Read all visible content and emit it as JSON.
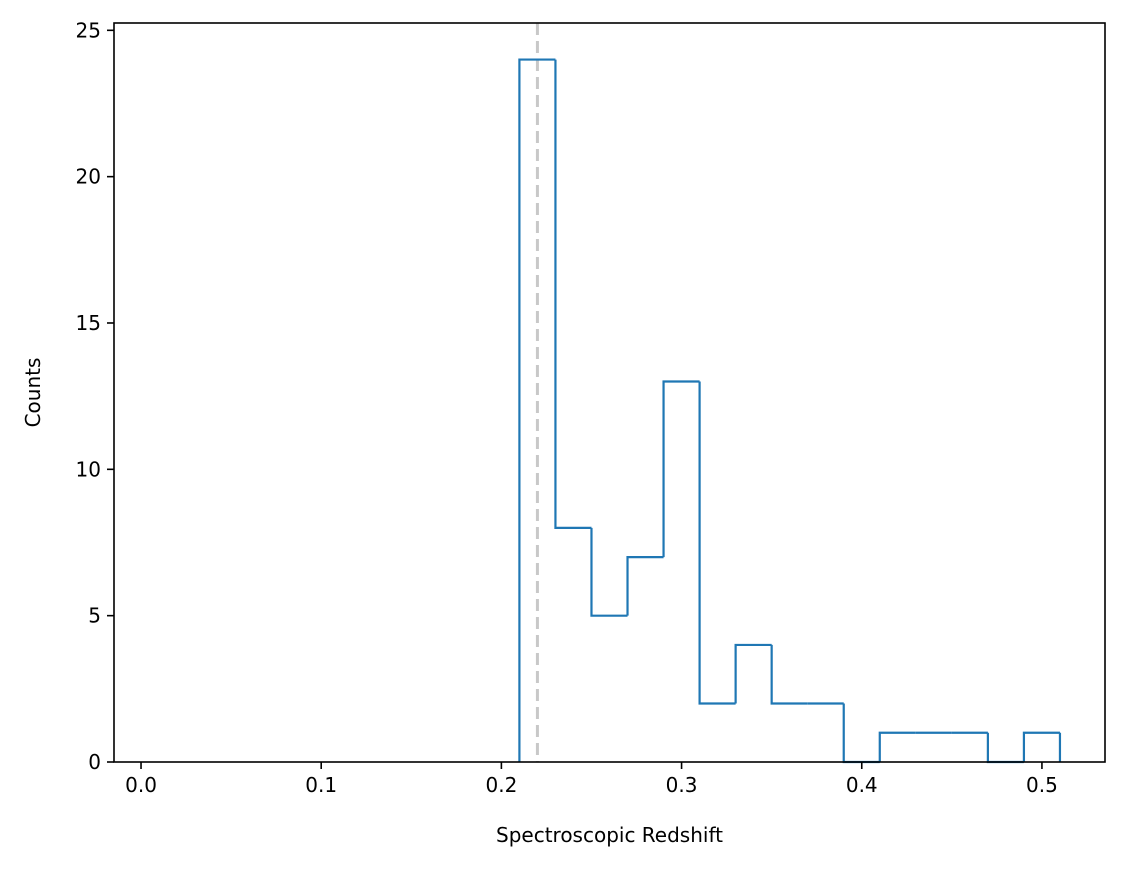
{
  "chart_data": {
    "type": "histogram",
    "title": "",
    "xlabel": "Spectroscopic Redshift",
    "ylabel": "Counts",
    "xlim": [
      -0.015,
      0.535
    ],
    "ylim": [
      0,
      25.25
    ],
    "xticks": [
      0.0,
      0.1,
      0.2,
      0.3,
      0.4,
      0.5
    ],
    "xtick_labels": [
      "0.0",
      "0.1",
      "0.2",
      "0.3",
      "0.4",
      "0.5"
    ],
    "yticks": [
      0,
      5,
      10,
      15,
      20,
      25
    ],
    "ytick_labels": [
      "0",
      "5",
      "10",
      "15",
      "20",
      "25"
    ],
    "bin_edges": [
      0.21,
      0.23,
      0.25,
      0.27,
      0.29,
      0.31,
      0.33,
      0.35,
      0.37,
      0.39,
      0.41,
      0.43,
      0.45,
      0.47,
      0.49,
      0.51
    ],
    "counts": [
      24,
      8,
      5,
      7,
      13,
      2,
      4,
      2,
      2,
      0,
      1,
      1,
      1,
      0,
      1
    ],
    "histtype": "step",
    "grid": false,
    "reference_line": {
      "x": 0.22,
      "style": "dashed"
    },
    "colors": {
      "step": "#1f77b4",
      "reference_line": "#c8c8c8",
      "axes": "#000000"
    }
  }
}
